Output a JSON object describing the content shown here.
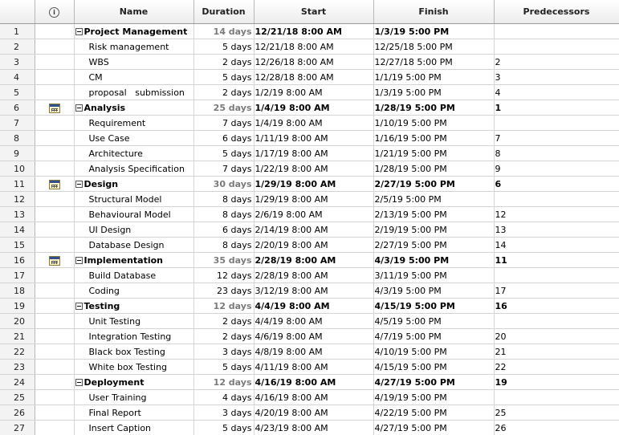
{
  "columns": {
    "info_icon": "information-icon",
    "name": "Name",
    "duration": "Duration",
    "start": "Start",
    "finish": "Finish",
    "predecessors": "Predecessors"
  },
  "rows": [
    {
      "id": "1",
      "name": "Project Management",
      "duration": "14 days",
      "start": "12/21/18 8:00 AM",
      "finish": "1/3/19 5:00 PM",
      "pred": "",
      "summary": true,
      "indicator": ""
    },
    {
      "id": "2",
      "name": "Risk management",
      "duration": "5 days",
      "start": "12/21/18 8:00 AM",
      "finish": "12/25/18 5:00 PM",
      "pred": "",
      "summary": false,
      "indicator": ""
    },
    {
      "id": "3",
      "name": "WBS",
      "duration": "2 days",
      "start": "12/26/18 8:00 AM",
      "finish": "12/27/18 5:00 PM",
      "pred": "2",
      "summary": false,
      "indicator": ""
    },
    {
      "id": "4",
      "name": "CM",
      "duration": "5 days",
      "start": "12/28/18 8:00 AM",
      "finish": "1/1/19 5:00 PM",
      "pred": "3",
      "summary": false,
      "indicator": ""
    },
    {
      "id": "5",
      "name": "proposal   submission",
      "duration": "2 days",
      "start": "1/2/19 8:00 AM",
      "finish": "1/3/19 5:00 PM",
      "pred": "4",
      "summary": false,
      "indicator": ""
    },
    {
      "id": "6",
      "name": "Analysis",
      "duration": "25 days",
      "start": "1/4/19 8:00 AM",
      "finish": "1/28/19 5:00 PM",
      "pred": "1",
      "summary": true,
      "indicator": "calendar-icon"
    },
    {
      "id": "7",
      "name": "Requirement",
      "duration": "7 days",
      "start": "1/4/19 8:00 AM",
      "finish": "1/10/19 5:00 PM",
      "pred": "",
      "summary": false,
      "indicator": ""
    },
    {
      "id": "8",
      "name": "Use Case",
      "duration": "6 days",
      "start": "1/11/19 8:00 AM",
      "finish": "1/16/19 5:00 PM",
      "pred": "7",
      "summary": false,
      "indicator": ""
    },
    {
      "id": "9",
      "name": "Architecture",
      "duration": "5 days",
      "start": "1/17/19 8:00 AM",
      "finish": "1/21/19 5:00 PM",
      "pred": "8",
      "summary": false,
      "indicator": ""
    },
    {
      "id": "10",
      "name": "Analysis Specification",
      "duration": "7 days",
      "start": "1/22/19 8:00 AM",
      "finish": "1/28/19 5:00 PM",
      "pred": "9",
      "summary": false,
      "indicator": ""
    },
    {
      "id": "11",
      "name": "Design",
      "duration": "30 days",
      "start": "1/29/19 8:00 AM",
      "finish": "2/27/19 5:00 PM",
      "pred": "6",
      "summary": true,
      "indicator": "calendar-icon"
    },
    {
      "id": "12",
      "name": "Structural Model",
      "duration": "8 days",
      "start": "1/29/19 8:00 AM",
      "finish": "2/5/19 5:00 PM",
      "pred": "",
      "summary": false,
      "indicator": ""
    },
    {
      "id": "13",
      "name": "Behavioural Model",
      "duration": "8 days",
      "start": "2/6/19 8:00 AM",
      "finish": "2/13/19 5:00 PM",
      "pred": "12",
      "summary": false,
      "indicator": ""
    },
    {
      "id": "14",
      "name": "UI Design",
      "duration": "6 days",
      "start": "2/14/19 8:00 AM",
      "finish": "2/19/19 5:00 PM",
      "pred": "13",
      "summary": false,
      "indicator": ""
    },
    {
      "id": "15",
      "name": "Database Design",
      "duration": "8 days",
      "start": "2/20/19 8:00 AM",
      "finish": "2/27/19 5:00 PM",
      "pred": "14",
      "summary": false,
      "indicator": ""
    },
    {
      "id": "16",
      "name": "Implementation",
      "duration": "35 days",
      "start": "2/28/19 8:00 AM",
      "finish": "4/3/19 5:00 PM",
      "pred": "11",
      "summary": true,
      "indicator": "calendar-icon"
    },
    {
      "id": "17",
      "name": "Build Database",
      "duration": "12 days",
      "start": "2/28/19 8:00 AM",
      "finish": "3/11/19 5:00 PM",
      "pred": "",
      "summary": false,
      "indicator": ""
    },
    {
      "id": "18",
      "name": "Coding",
      "duration": "23 days",
      "start": "3/12/19 8:00 AM",
      "finish": "4/3/19 5:00 PM",
      "pred": "17",
      "summary": false,
      "indicator": ""
    },
    {
      "id": "19",
      "name": "Testing",
      "duration": "12 days",
      "start": "4/4/19 8:00 AM",
      "finish": "4/15/19 5:00 PM",
      "pred": "16",
      "summary": true,
      "indicator": ""
    },
    {
      "id": "20",
      "name": "Unit Testing",
      "duration": "2 days",
      "start": "4/4/19 8:00 AM",
      "finish": "4/5/19 5:00 PM",
      "pred": "",
      "summary": false,
      "indicator": ""
    },
    {
      "id": "21",
      "name": "Integration Testing",
      "duration": "2 days",
      "start": "4/6/19 8:00 AM",
      "finish": "4/7/19 5:00 PM",
      "pred": "20",
      "summary": false,
      "indicator": ""
    },
    {
      "id": "22",
      "name": "Black box Testing",
      "duration": "3 days",
      "start": "4/8/19 8:00 AM",
      "finish": "4/10/19 5:00 PM",
      "pred": "21",
      "summary": false,
      "indicator": ""
    },
    {
      "id": "23",
      "name": "White box Testing",
      "duration": "5 days",
      "start": "4/11/19 8:00 AM",
      "finish": "4/15/19 5:00 PM",
      "pred": "22",
      "summary": false,
      "indicator": ""
    },
    {
      "id": "24",
      "name": "Deployment",
      "duration": "12 days",
      "start": "4/16/19 8:00 AM",
      "finish": "4/27/19 5:00 PM",
      "pred": "19",
      "summary": true,
      "indicator": ""
    },
    {
      "id": "25",
      "name": "User Training",
      "duration": "4 days",
      "start": "4/16/19 8:00 AM",
      "finish": "4/19/19 5:00 PM",
      "pred": "",
      "summary": false,
      "indicator": ""
    },
    {
      "id": "26",
      "name": "Final Report",
      "duration": "3 days",
      "start": "4/20/19 8:00 AM",
      "finish": "4/22/19 5:00 PM",
      "pred": "25",
      "summary": false,
      "indicator": ""
    },
    {
      "id": "27",
      "name": "Insert Caption",
      "duration": "5 days",
      "start": "4/23/19 8:00 AM",
      "finish": "4/27/19 5:00 PM",
      "pred": "26",
      "summary": false,
      "indicator": ""
    }
  ]
}
